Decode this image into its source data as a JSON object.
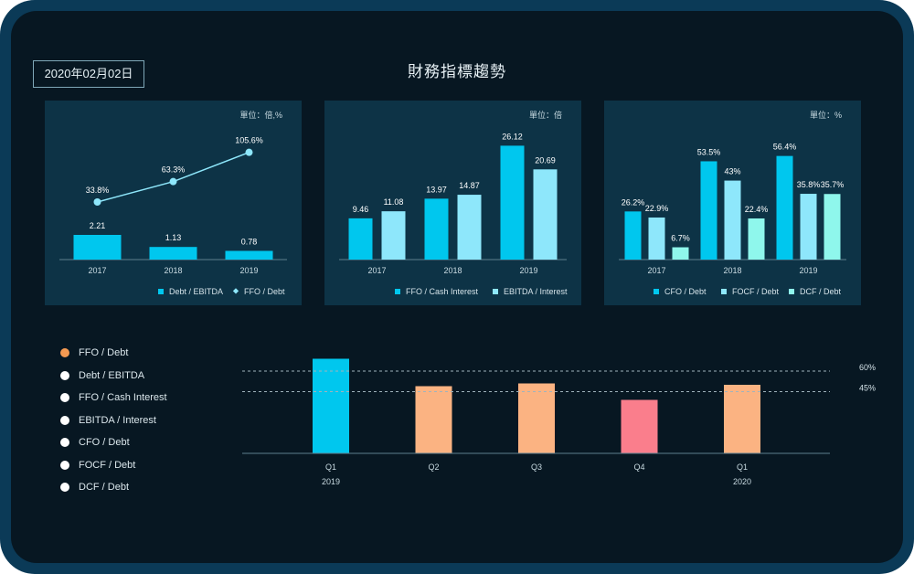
{
  "header": {
    "date": "2020年02月02日",
    "title": "財務指標趨勢"
  },
  "colors": {
    "cyan": "#00c7ee",
    "light_cyan": "#8ee7fb",
    "mint": "#8ff7ec",
    "orange": "#fbb382",
    "pink": "#fa7e8c",
    "dot_active": "#f49a52",
    "dot_inactive": "#ffffff"
  },
  "chart_data": [
    {
      "type": "bar+line",
      "unit_label": "單位：倍,%",
      "categories": [
        "2017",
        "2018",
        "2019"
      ],
      "bar_series": [
        {
          "name": "Debt / EBITDA",
          "values": [
            2.21,
            1.13,
            0.78
          ],
          "labels": [
            "2.21",
            "1.13",
            "0.78"
          ]
        }
      ],
      "line_series": [
        {
          "name": "FFO / Debt",
          "values": [
            33.8,
            63.3,
            105.6
          ],
          "labels": [
            "33.8%",
            "63.3%",
            "105.6%"
          ]
        }
      ]
    },
    {
      "type": "bar",
      "unit_label": "單位：倍",
      "categories": [
        "2017",
        "2018",
        "2019"
      ],
      "series": [
        {
          "name": "FFO / Cash Interest",
          "values": [
            9.46,
            13.97,
            26.12
          ],
          "labels": [
            "9.46",
            "13.97",
            "26.12"
          ]
        },
        {
          "name": "EBITDA / Interest",
          "values": [
            11.08,
            14.87,
            20.69
          ],
          "labels": [
            "11.08",
            "14.87",
            "20.69"
          ]
        }
      ]
    },
    {
      "type": "bar",
      "unit_label": "單位：%",
      "categories": [
        "2017",
        "2018",
        "2019"
      ],
      "series": [
        {
          "name": "CFO / Debt",
          "values": [
            26.2,
            53.5,
            56.4
          ],
          "labels": [
            "26.2%",
            "53.5%",
            "56.4%"
          ]
        },
        {
          "name": "FOCF / Debt",
          "values": [
            22.9,
            43,
            35.8
          ],
          "labels": [
            "22.9%",
            "43%",
            "35.8%"
          ]
        },
        {
          "name": "DCF / Debt",
          "values": [
            6.7,
            22.4,
            35.7
          ],
          "labels": [
            "6.7%",
            "22.4%",
            "35.7%"
          ]
        }
      ]
    },
    {
      "type": "bar",
      "categories": [
        "Q1",
        "Q2",
        "Q3",
        "Q4",
        "Q1"
      ],
      "year_labels": [
        "2019",
        "",
        "",
        "",
        "2020"
      ],
      "values": [
        69,
        49,
        51,
        39,
        50
      ],
      "bar_colors": [
        "#00c7ee",
        "#fbb382",
        "#fbb382",
        "#fa7e8c",
        "#fbb382"
      ],
      "reference_lines": [
        {
          "value": 60,
          "label": "60%"
        },
        {
          "value": 45,
          "label": "45%"
        }
      ],
      "ylim": [
        0,
        80
      ]
    }
  ],
  "legend_items": [
    {
      "label": "FFO / Debt",
      "active": true
    },
    {
      "label": "Debt / EBITDA",
      "active": false
    },
    {
      "label": "FFO / Cash Interest",
      "active": false
    },
    {
      "label": "EBITDA / Interest",
      "active": false
    },
    {
      "label": "CFO / Debt",
      "active": false
    },
    {
      "label": "FOCF / Debt",
      "active": false
    },
    {
      "label": "DCF / Debt",
      "active": false
    }
  ]
}
